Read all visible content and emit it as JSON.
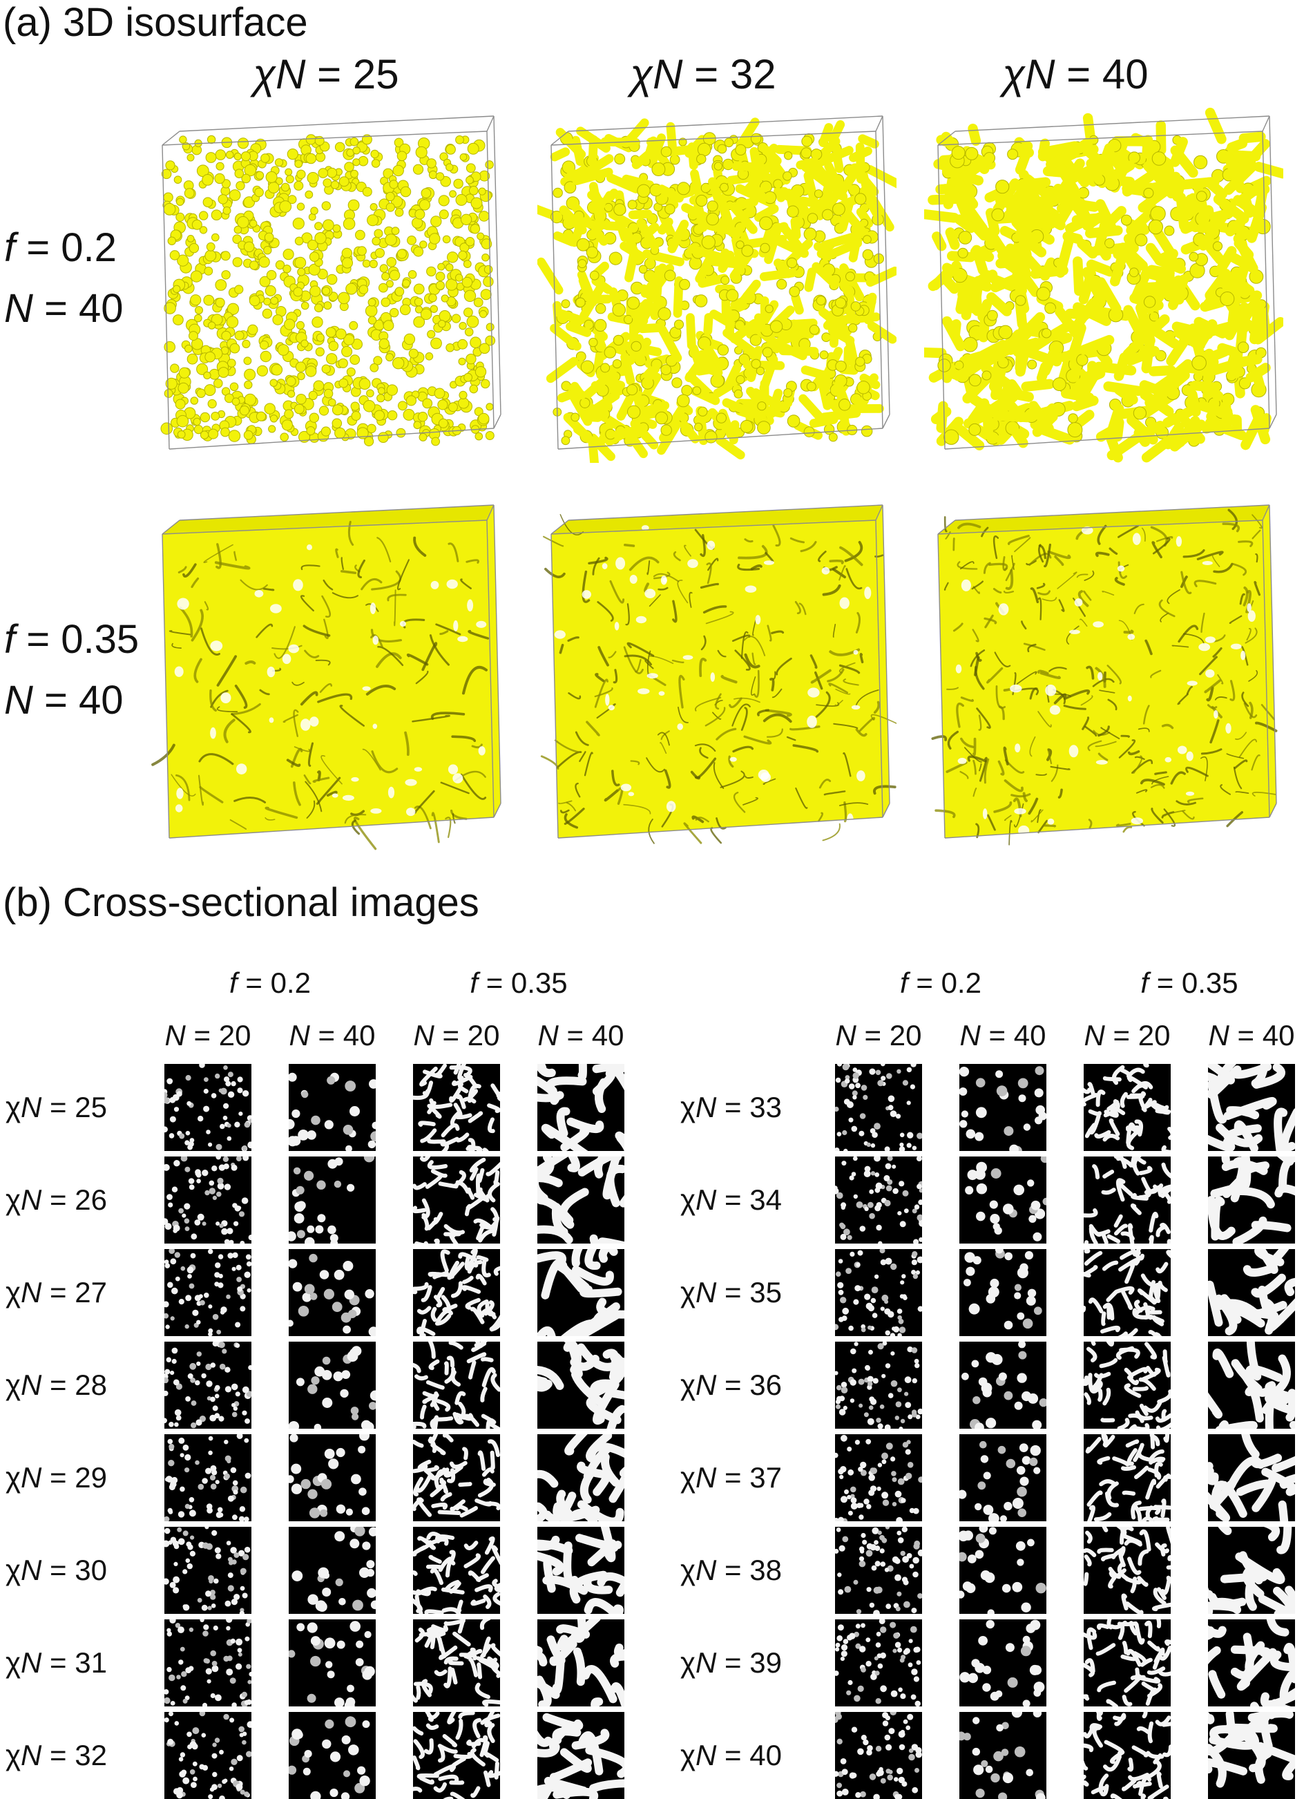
{
  "panel_a": {
    "title": "(a) 3D isosurface",
    "columns": [
      {
        "prefix": "χ",
        "var": "N",
        "rest": " = 25"
      },
      {
        "prefix": "χ",
        "var": "N",
        "rest": " = 32"
      },
      {
        "prefix": "χ",
        "var": "N",
        "rest": " = 40"
      }
    ],
    "rows": [
      {
        "f_var": "f",
        "f_rest": " = 0.2",
        "n_var": "N",
        "n_rest": " = 40",
        "style": "spheres"
      },
      {
        "f_var": "f",
        "f_rest": " = 0.35",
        "n_var": "N",
        "n_rest": " = 40",
        "style": "network"
      }
    ],
    "isosurface_color": "#f2f20a"
  },
  "panel_b": {
    "title": "(b) Cross-sectional images",
    "groups": [
      {
        "f_headers": [
          {
            "var": "f",
            "rest": " = 0.2"
          },
          {
            "var": "f",
            "rest": " = 0.35"
          }
        ],
        "n_headers": [
          {
            "var": "N",
            "rest": " = 20"
          },
          {
            "var": "N",
            "rest": " = 40"
          },
          {
            "var": "N",
            "rest": " = 20"
          },
          {
            "var": "N",
            "rest": " = 40"
          }
        ],
        "rows": [
          {
            "prefix": "χ",
            "var": "N",
            "rest": " = 25"
          },
          {
            "prefix": "χ",
            "var": "N",
            "rest": " = 26"
          },
          {
            "prefix": "χ",
            "var": "N",
            "rest": " = 27"
          },
          {
            "prefix": "χ",
            "var": "N",
            "rest": " = 28"
          },
          {
            "prefix": "χ",
            "var": "N",
            "rest": " = 29"
          },
          {
            "prefix": "χ",
            "var": "N",
            "rest": " = 30"
          },
          {
            "prefix": "χ",
            "var": "N",
            "rest": " = 31"
          },
          {
            "prefix": "χ",
            "var": "N",
            "rest": " = 32"
          }
        ]
      },
      {
        "f_headers": [
          {
            "var": "f",
            "rest": " = 0.2"
          },
          {
            "var": "f",
            "rest": " = 0.35"
          }
        ],
        "n_headers": [
          {
            "var": "N",
            "rest": " = 20"
          },
          {
            "var": "N",
            "rest": " = 40"
          },
          {
            "var": "N",
            "rest": " = 20"
          },
          {
            "var": "N",
            "rest": " = 40"
          }
        ],
        "rows": [
          {
            "prefix": "χ",
            "var": "N",
            "rest": " = 33"
          },
          {
            "prefix": "χ",
            "var": "N",
            "rest": " = 34"
          },
          {
            "prefix": "χ",
            "var": "N",
            "rest": " = 35"
          },
          {
            "prefix": "χ",
            "var": "N",
            "rest": " = 36"
          },
          {
            "prefix": "χ",
            "var": "N",
            "rest": " = 37"
          },
          {
            "prefix": "χ",
            "var": "N",
            "rest": " = 38"
          },
          {
            "prefix": "χ",
            "var": "N",
            "rest": " = 39"
          },
          {
            "prefix": "χ",
            "var": "N",
            "rest": " = 40"
          }
        ]
      }
    ],
    "thumbnail_styles": [
      "dots-small",
      "dots-large",
      "stripes-fine",
      "stripes-coarse"
    ]
  }
}
